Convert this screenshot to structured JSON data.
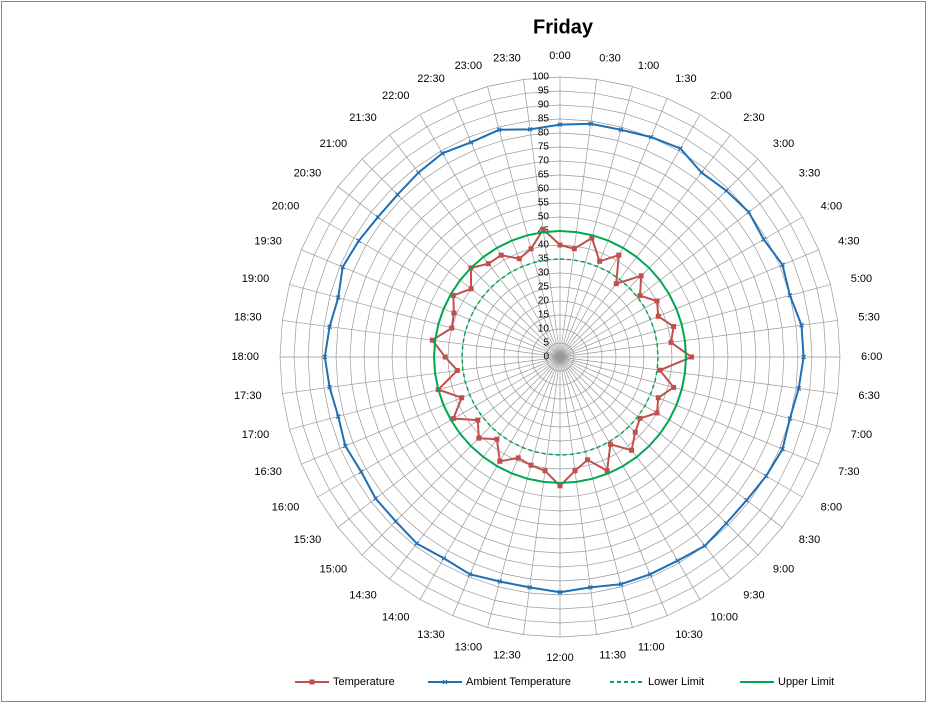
{
  "chart_data": {
    "type": "radar",
    "title": "Friday",
    "categories": [
      "0:00",
      "0:30",
      "1:00",
      "1:30",
      "2:00",
      "2:30",
      "3:00",
      "3:30",
      "4:00",
      "4:30",
      "5:00",
      "5:30",
      "6:00",
      "6:30",
      "7:00",
      "7:30",
      "8:00",
      "8:30",
      "9:00",
      "9:30",
      "10:00",
      "10:30",
      "11:00",
      "11:30",
      "12:00",
      "12:30",
      "13:00",
      "13:30",
      "14:00",
      "14:30",
      "15:00",
      "15:30",
      "16:00",
      "16:30",
      "17:00",
      "17:30",
      "18:00",
      "18:30",
      "19:00",
      "19:30",
      "20:00",
      "20:30",
      "21:00",
      "21:30",
      "22:00",
      "22:30",
      "23:00",
      "23:30"
    ],
    "series": [
      {
        "name": "Temperature",
        "color": "#c0504d",
        "marker": "square",
        "dash": "solid",
        "values": [
          40,
          39,
          44,
          37,
          42,
          33,
          41,
          36,
          40,
          38,
          42,
          40,
          47,
          36,
          42,
          38,
          40,
          36,
          38,
          42,
          36,
          44,
          38,
          41,
          46,
          41,
          40,
          39,
          43,
          37,
          41,
          37,
          44,
          38,
          45,
          37,
          41,
          46,
          40,
          41,
          44,
          40,
          45,
          42,
          42,
          38,
          40,
          46
        ]
      },
      {
        "name": "Ambient Temperature",
        "color": "#1f6fb5",
        "marker": "cross",
        "dash": "solid",
        "values": [
          83,
          84,
          84,
          85,
          86,
          83,
          84,
          85,
          84,
          86,
          85,
          87,
          87,
          86,
          85,
          86,
          85,
          84,
          84,
          85,
          84,
          84,
          84,
          83,
          84,
          83,
          83,
          84,
          83,
          84,
          83,
          83,
          82,
          83,
          82,
          83,
          84,
          83,
          82,
          84,
          83,
          82,
          82,
          83,
          84,
          83,
          84,
          82
        ]
      },
      {
        "name": "Lower Limit",
        "color": "#00a650",
        "marker": "none",
        "dash": "dashed",
        "values": [
          35,
          35,
          35,
          35,
          35,
          35,
          35,
          35,
          35,
          35,
          35,
          35,
          35,
          35,
          35,
          35,
          35,
          35,
          35,
          35,
          35,
          35,
          35,
          35,
          35,
          35,
          35,
          35,
          35,
          35,
          35,
          35,
          35,
          35,
          35,
          35,
          35,
          35,
          35,
          35,
          35,
          35,
          35,
          35,
          35,
          35,
          35,
          35
        ]
      },
      {
        "name": "Upper Limit",
        "color": "#00a650",
        "marker": "none",
        "dash": "solid",
        "values": [
          45,
          45,
          45,
          45,
          45,
          45,
          45,
          45,
          45,
          45,
          45,
          45,
          45,
          45,
          45,
          45,
          45,
          45,
          45,
          45,
          45,
          45,
          45,
          45,
          45,
          45,
          45,
          45,
          45,
          45,
          45,
          45,
          45,
          45,
          45,
          45,
          45,
          45,
          45,
          45,
          45,
          45,
          45,
          45,
          45,
          45,
          45,
          45
        ]
      }
    ],
    "ylim": [
      0,
      100
    ],
    "yticks": [
      0,
      5,
      10,
      15,
      20,
      25,
      30,
      35,
      40,
      45,
      50,
      55,
      60,
      65,
      70,
      75,
      80,
      85,
      90,
      95,
      100
    ],
    "grid": true,
    "legend": "bottom"
  }
}
